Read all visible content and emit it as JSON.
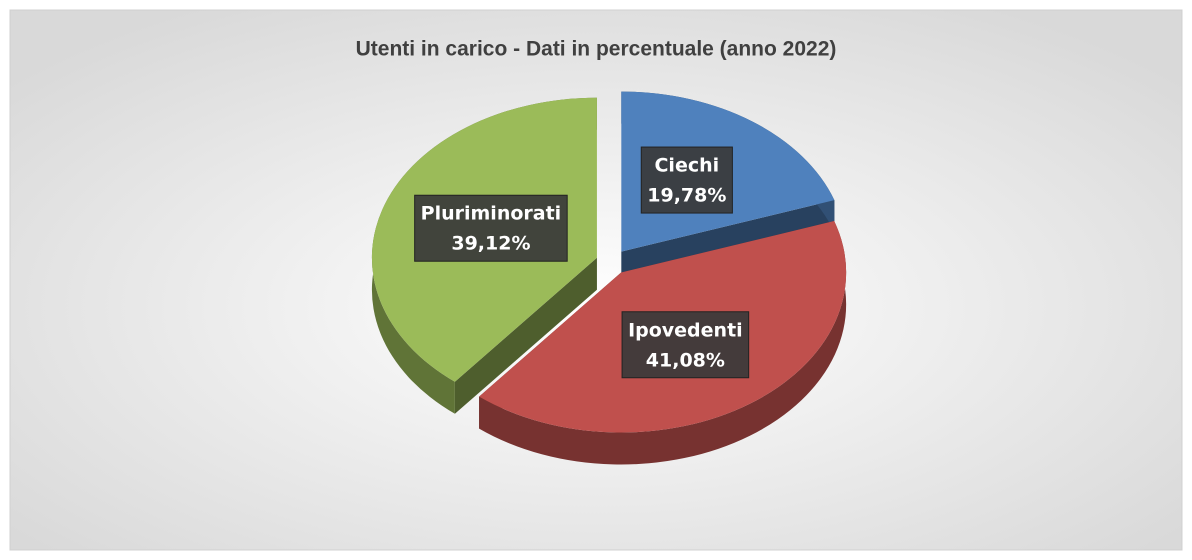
{
  "chart_data": {
    "type": "pie",
    "title": "Utenti in carico - Dati in percentuale (anno 2022)",
    "categories": [
      "Ciechi",
      "Ipovedenti",
      "Pluriminorati"
    ],
    "values": [
      19.78,
      41.08,
      39.12
    ],
    "value_labels": [
      "19,78%",
      "41,08%",
      "39,12%"
    ],
    "colors": [
      "#4f81bd",
      "#c0504d",
      "#9bbb59"
    ]
  }
}
